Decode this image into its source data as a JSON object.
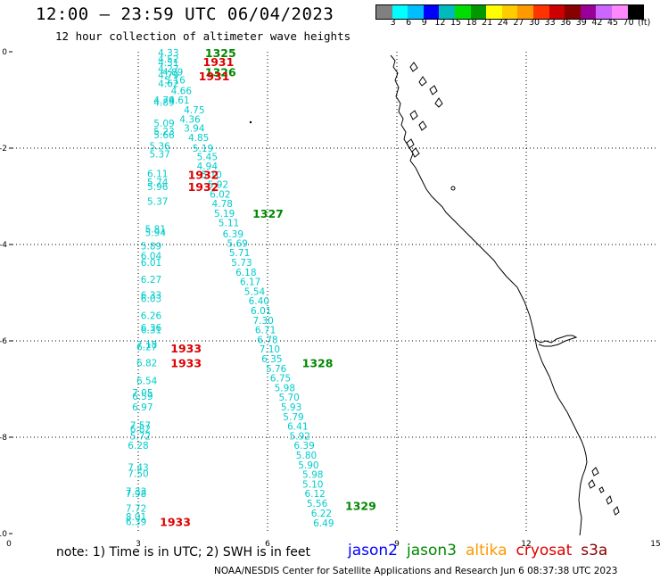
{
  "title": "12:00 – 23:59 UTC 06/04/2023",
  "subtitle": "12 hour collection of altimeter wave heights",
  "scale": {
    "unit": "(ft)",
    "colors": [
      "#808080",
      "#00ffff",
      "#00bfff",
      "#0000ff",
      "#00bbbb",
      "#00dd00",
      "#009900",
      "#ffff00",
      "#ffcc00",
      "#ff9900",
      "#ff3300",
      "#cc0000",
      "#880000",
      "#990099",
      "#cc66ff",
      "#ff88ff",
      "#000000"
    ],
    "labels": [
      "3",
      "6",
      "9",
      "12",
      "15",
      "18",
      "21",
      "24",
      "27",
      "30",
      "33",
      "36",
      "39",
      "42",
      "45",
      "70"
    ]
  },
  "note": "note:  1) Time is in UTC;  2) SWH is in feet",
  "legend": [
    {
      "name": "jason2",
      "color": "#0000ff"
    },
    {
      "name": "jason3",
      "color": "#008800"
    },
    {
      "name": "altika",
      "color": "#ff9900"
    },
    {
      "name": "cryosat",
      "color": "#dd0000"
    },
    {
      "name": "s3a",
      "color": "#880000"
    }
  ],
  "credit": "NOAA/NESDIS Center for Satellite Applications and Research    Jun  6 08:37:38 UTC 2023",
  "chart_data": {
    "type": "scatter",
    "xlim": [
      0,
      15
    ],
    "ylim": [
      0,
      -10
    ],
    "x_ticks": [
      "0",
      "3",
      "6",
      "9",
      "12",
      "15"
    ],
    "y_ticks": [
      "0",
      "-2",
      "-4",
      "-6",
      "-8",
      "-10"
    ],
    "wave_color": "#00cccc",
    "points": [
      {
        "x": 3.7,
        "y": -0.02,
        "v": "4.33"
      },
      {
        "x": 3.7,
        "y": -0.15,
        "v": "4.52"
      },
      {
        "x": 3.7,
        "y": -0.22,
        "v": "4.51"
      },
      {
        "x": 3.7,
        "y": -0.35,
        "v": "4.27"
      },
      {
        "x": 3.8,
        "y": -0.42,
        "v": "4.89"
      },
      {
        "x": 3.7,
        "y": -0.48,
        "v": "4.79"
      },
      {
        "x": 3.85,
        "y": -0.58,
        "v": "5.16"
      },
      {
        "x": 3.7,
        "y": -0.66,
        "v": "4.62"
      },
      {
        "x": 4.0,
        "y": -0.81,
        "v": "4.66"
      },
      {
        "x": 3.6,
        "y": -1.0,
        "v": "4.79"
      },
      {
        "x": 3.95,
        "y": -1.0,
        "v": "4.61"
      },
      {
        "x": 3.6,
        "y": -1.05,
        "v": "4.89"
      },
      {
        "x": 4.3,
        "y": -1.2,
        "v": "4.75"
      },
      {
        "x": 4.2,
        "y": -1.4,
        "v": "4.36"
      },
      {
        "x": 3.6,
        "y": -1.48,
        "v": "5.09"
      },
      {
        "x": 4.3,
        "y": -1.58,
        "v": "3.94"
      },
      {
        "x": 3.6,
        "y": -1.65,
        "v": "5.23"
      },
      {
        "x": 3.6,
        "y": -1.72,
        "v": "5.66"
      },
      {
        "x": 4.4,
        "y": -1.78,
        "v": "4.85"
      },
      {
        "x": 3.5,
        "y": -1.95,
        "v": "5.36"
      },
      {
        "x": 4.5,
        "y": -2.0,
        "v": "5.19"
      },
      {
        "x": 3.5,
        "y": -2.12,
        "v": "5.37"
      },
      {
        "x": 4.6,
        "y": -2.18,
        "v": "5.45"
      },
      {
        "x": 4.6,
        "y": -2.37,
        "v": "4.94"
      },
      {
        "x": 3.45,
        "y": -2.53,
        "v": "6.11"
      },
      {
        "x": 4.7,
        "y": -2.55,
        "v": "5.10"
      },
      {
        "x": 3.45,
        "y": -2.7,
        "v": "5.74"
      },
      {
        "x": 4.85,
        "y": -2.75,
        "v": "5.92"
      },
      {
        "x": 3.45,
        "y": -2.8,
        "v": "5.96"
      },
      {
        "x": 4.9,
        "y": -2.95,
        "v": "6.02"
      },
      {
        "x": 3.45,
        "y": -3.1,
        "v": "5.37"
      },
      {
        "x": 4.95,
        "y": -3.15,
        "v": "4.78"
      },
      {
        "x": 5.0,
        "y": -3.35,
        "v": "5.19"
      },
      {
        "x": 5.1,
        "y": -3.55,
        "v": "5.11"
      },
      {
        "x": 3.4,
        "y": -3.68,
        "v": "5.81"
      },
      {
        "x": 3.4,
        "y": -3.75,
        "v": "5.94"
      },
      {
        "x": 5.2,
        "y": -3.78,
        "v": "6.39"
      },
      {
        "x": 5.3,
        "y": -3.97,
        "v": "5.69"
      },
      {
        "x": 3.3,
        "y": -4.03,
        "v": "5.89"
      },
      {
        "x": 5.35,
        "y": -4.17,
        "v": "5.71"
      },
      {
        "x": 3.3,
        "y": -4.23,
        "v": "6.04"
      },
      {
        "x": 5.4,
        "y": -4.37,
        "v": "5.73"
      },
      {
        "x": 3.3,
        "y": -4.37,
        "v": "6.01"
      },
      {
        "x": 5.5,
        "y": -4.57,
        "v": "6.18"
      },
      {
        "x": 3.3,
        "y": -4.72,
        "v": "6.27"
      },
      {
        "x": 5.6,
        "y": -4.77,
        "v": "6.17"
      },
      {
        "x": 5.7,
        "y": -4.97,
        "v": "5.54"
      },
      {
        "x": 3.3,
        "y": -5.05,
        "v": "6.33"
      },
      {
        "x": 3.3,
        "y": -5.12,
        "v": "6.03"
      },
      {
        "x": 5.8,
        "y": -5.17,
        "v": "6.40"
      },
      {
        "x": 5.85,
        "y": -5.37,
        "v": "6.01"
      },
      {
        "x": 3.3,
        "y": -5.47,
        "v": "6.26"
      },
      {
        "x": 5.9,
        "y": -5.57,
        "v": "7.30"
      },
      {
        "x": 3.3,
        "y": -5.72,
        "v": "6.36"
      },
      {
        "x": 3.3,
        "y": -5.77,
        "v": "6.31"
      },
      {
        "x": 5.95,
        "y": -5.77,
        "v": "6.71"
      },
      {
        "x": 6.0,
        "y": -5.97,
        "v": "6.78"
      },
      {
        "x": 3.2,
        "y": -6.07,
        "v": "7.18"
      },
      {
        "x": 3.2,
        "y": -6.12,
        "v": "6.27"
      },
      {
        "x": 6.05,
        "y": -6.17,
        "v": "7.10"
      },
      {
        "x": 6.1,
        "y": -6.37,
        "v": "6.35"
      },
      {
        "x": 3.2,
        "y": -6.45,
        "v": "6.82"
      },
      {
        "x": 6.2,
        "y": -6.57,
        "v": "5.76"
      },
      {
        "x": 3.2,
        "y": -6.82,
        "v": "6.54"
      },
      {
        "x": 6.3,
        "y": -6.77,
        "v": "6.75"
      },
      {
        "x": 6.4,
        "y": -6.97,
        "v": "5.98"
      },
      {
        "x": 3.1,
        "y": -7.07,
        "v": "7.05"
      },
      {
        "x": 3.1,
        "y": -7.15,
        "v": "6.59"
      },
      {
        "x": 6.5,
        "y": -7.17,
        "v": "5.70"
      },
      {
        "x": 3.1,
        "y": -7.37,
        "v": "6.97"
      },
      {
        "x": 6.55,
        "y": -7.37,
        "v": "5.93"
      },
      {
        "x": 6.6,
        "y": -7.57,
        "v": "5.79"
      },
      {
        "x": 3.05,
        "y": -7.75,
        "v": "7.57"
      },
      {
        "x": 3.05,
        "y": -7.82,
        "v": "6.82"
      },
      {
        "x": 6.7,
        "y": -7.77,
        "v": "6.41"
      },
      {
        "x": 3.05,
        "y": -7.97,
        "v": "5.72"
      },
      {
        "x": 6.75,
        "y": -7.97,
        "v": "5.92"
      },
      {
        "x": 6.85,
        "y": -8.17,
        "v": "6.39"
      },
      {
        "x": 3.0,
        "y": -8.17,
        "v": "6.28"
      },
      {
        "x": 6.9,
        "y": -8.37,
        "v": "5.80"
      },
      {
        "x": 6.95,
        "y": -8.57,
        "v": "5.90"
      },
      {
        "x": 3.0,
        "y": -8.62,
        "v": "7.43"
      },
      {
        "x": 3.0,
        "y": -8.75,
        "v": "7.50"
      },
      {
        "x": 7.05,
        "y": -8.77,
        "v": "5.98"
      },
      {
        "x": 7.05,
        "y": -8.97,
        "v": "5.10"
      },
      {
        "x": 2.95,
        "y": -9.12,
        "v": "7.33"
      },
      {
        "x": 2.95,
        "y": -9.17,
        "v": "7.98"
      },
      {
        "x": 7.1,
        "y": -9.17,
        "v": "6.12"
      },
      {
        "x": 7.15,
        "y": -9.37,
        "v": "5.56"
      },
      {
        "x": 2.95,
        "y": -9.47,
        "v": "7.72"
      },
      {
        "x": 7.25,
        "y": -9.57,
        "v": "6.22"
      },
      {
        "x": 2.95,
        "y": -9.65,
        "v": "8.01"
      },
      {
        "x": 2.95,
        "y": -9.75,
        "v": "6.39"
      },
      {
        "x": 7.3,
        "y": -9.78,
        "v": "6.49"
      }
    ],
    "passes": [
      {
        "x": 4.55,
        "y": -0.02,
        "label": "1325",
        "color": "#008800"
      },
      {
        "x": 4.5,
        "y": -0.2,
        "label": "1931",
        "color": "#dd0000"
      },
      {
        "x": 4.55,
        "y": -0.42,
        "label": "1326",
        "color": "#008800"
      },
      {
        "x": 4.4,
        "y": -0.5,
        "label": "1931",
        "color": "#dd0000"
      },
      {
        "x": 4.15,
        "y": -2.55,
        "label": "1932",
        "color": "#dd0000"
      },
      {
        "x": 4.15,
        "y": -2.8,
        "label": "1932",
        "color": "#dd0000"
      },
      {
        "x": 5.65,
        "y": -3.35,
        "label": "1327",
        "color": "#008800"
      },
      {
        "x": 3.75,
        "y": -6.15,
        "label": "1933",
        "color": "#dd0000"
      },
      {
        "x": 3.75,
        "y": -6.45,
        "label": "1933",
        "color": "#dd0000"
      },
      {
        "x": 6.8,
        "y": -6.45,
        "label": "1328",
        "color": "#008800"
      },
      {
        "x": 7.8,
        "y": -9.42,
        "label": "1329",
        "color": "#008800"
      },
      {
        "x": 3.5,
        "y": -9.75,
        "label": "1933",
        "color": "#dd0000"
      }
    ]
  }
}
